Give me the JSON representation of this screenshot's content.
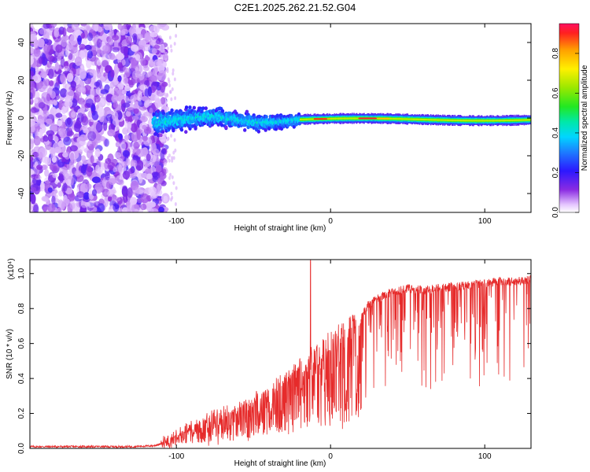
{
  "title": "C2E1.2025.262.21.52.G04",
  "colors": {
    "signal": "#e62b2b",
    "axis": "#000000"
  },
  "chart_data": [
    {
      "type": "heatmap",
      "xlabel": "Height of straight line (km)",
      "ylabel": "Frequency (Hz)",
      "xlim": [
        -195,
        130
      ],
      "ylim": [
        -50,
        50
      ],
      "xticks": [
        -100,
        0,
        100
      ],
      "xtick_labels": [
        "-100",
        "0",
        "100"
      ],
      "yticks": [
        -40,
        -20,
        0,
        20,
        40
      ],
      "ytick_labels": [
        "-40",
        "-20",
        "0",
        "20",
        "40"
      ],
      "colorbar": {
        "label": "Normalized spectral amplitude",
        "range": [
          0.0,
          0.95
        ],
        "ticks": [
          0.0,
          0.2,
          0.4,
          0.6,
          0.8
        ],
        "tick_labels": [
          "0.0",
          "0.2",
          "0.4",
          "0.6",
          "0.8"
        ],
        "colormap": "rainbow (violet to red)"
      },
      "regions": [
        {
          "name": "noise",
          "x_range": [
            -195,
            -107
          ],
          "freq_range": [
            -50,
            50
          ],
          "amplitude": 0.15
        },
        {
          "name": "signal-wide",
          "x_range": [
            -115,
            -20
          ],
          "freq_spread": 8,
          "amplitude": 0.4
        },
        {
          "name": "signal-narrow",
          "x_range": [
            -20,
            130
          ],
          "freq_spread": 2,
          "amplitude": 0.6,
          "peak_x": [
            -10,
            20,
            35
          ]
        }
      ]
    },
    {
      "type": "line",
      "xlabel": "Height of straight line (km)",
      "ylabel": "SNR (10 * v/v)",
      "y_multiplier": "(x10⁴)",
      "xlim": [
        -195,
        130
      ],
      "ylim": [
        0,
        1.08
      ],
      "xticks": [
        -100,
        0,
        100
      ],
      "xtick_labels": [
        "-100",
        "0",
        "100"
      ],
      "yticks": [
        0.0,
        0.2,
        0.4,
        0.6,
        0.8,
        1.0
      ],
      "ytick_labels": [
        "0.0",
        "0.2",
        "0.4",
        "0.6",
        "0.8",
        "1.0"
      ],
      "series": [
        {
          "name": "SNR",
          "envelope_x": [
            -195,
            -130,
            -115,
            -110,
            -100,
            -90,
            -80,
            -70,
            -60,
            -50,
            -40,
            -30,
            -20,
            -10,
            0,
            10,
            20,
            25,
            30,
            40,
            50,
            60,
            70,
            80,
            90,
            100,
            110,
            120,
            130
          ],
          "envelope_y": [
            0.01,
            0.01,
            0.015,
            0.025,
            0.07,
            0.13,
            0.17,
            0.2,
            0.24,
            0.28,
            0.33,
            0.4,
            0.48,
            0.56,
            0.64,
            0.7,
            0.78,
            0.85,
            0.88,
            0.92,
            0.94,
            0.93,
            0.94,
            0.95,
            0.96,
            0.97,
            0.98,
            0.98,
            0.99
          ],
          "spike": {
            "x": -13,
            "y": 1.08
          }
        }
      ]
    }
  ]
}
